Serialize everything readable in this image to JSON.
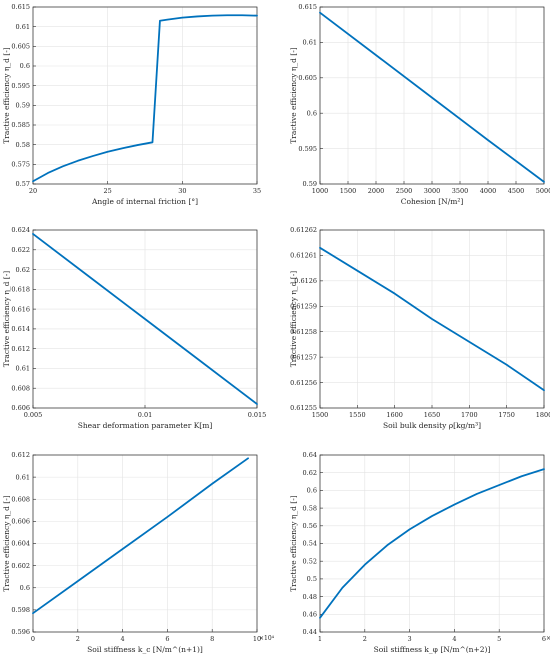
{
  "colors": {
    "line": "#0072bd",
    "axis": "#262626",
    "grid": "#e3e3e3"
  },
  "chart_data": [
    {
      "type": "line",
      "xlabel": "Angle of internal friction [°]",
      "ylabel": "Tractive efficiency η_d [-]",
      "xlim": [
        20,
        35
      ],
      "ylim": [
        0.57,
        0.615
      ],
      "xticks": [
        "20",
        "25",
        "30",
        "35"
      ],
      "yticks": [
        "0.57",
        "0.575",
        "0.58",
        "0.585",
        "0.59",
        "0.595",
        "0.6",
        "0.605",
        "0.61",
        "0.615"
      ],
      "grid": true,
      "series": [
        {
          "x": [
            20,
            21,
            22,
            23,
            24,
            25,
            26,
            27,
            28,
            28.5,
            29,
            30,
            31,
            32,
            33,
            34,
            35
          ],
          "y": [
            0.5707,
            0.5728,
            0.5745,
            0.5759,
            0.5771,
            0.5782,
            0.5791,
            0.5799,
            0.5806,
            0.6115,
            0.6118,
            0.6123,
            0.6126,
            0.6128,
            0.6129,
            0.6129,
            0.6128
          ]
        }
      ]
    },
    {
      "type": "line",
      "xlabel": "Cohesion [N/m²]",
      "ylabel": "Tractive efficiency η_d [-]",
      "xlim": [
        1000,
        5000
      ],
      "ylim": [
        0.59,
        0.615
      ],
      "xticks": [
        "1000",
        "1500",
        "2000",
        "2500",
        "3000",
        "3500",
        "4000",
        "4500",
        "5000"
      ],
      "yticks": [
        "0.59",
        "0.595",
        "0.6",
        "0.605",
        "0.61",
        "0.615"
      ],
      "grid": true,
      "series": [
        {
          "x": [
            1000,
            2000,
            3000,
            4000,
            5000
          ],
          "y": [
            0.6142,
            0.6082,
            0.6022,
            0.5962,
            0.5903
          ]
        }
      ]
    },
    {
      "type": "line",
      "xlabel": "Shear deformation parameter K[m]",
      "ylabel": "Tractive efficiency η_d [-]",
      "xlim": [
        0.005,
        0.015
      ],
      "ylim": [
        0.606,
        0.624
      ],
      "xticks": [
        "0.005",
        "0.01",
        "0.015"
      ],
      "yticks": [
        "0.606",
        "0.608",
        "0.61",
        "0.612",
        "0.614",
        "0.616",
        "0.618",
        "0.62",
        "0.622",
        "0.624"
      ],
      "grid": true,
      "series": [
        {
          "x": [
            0.005,
            0.0075,
            0.01,
            0.0125,
            0.015
          ],
          "y": [
            0.6236,
            0.6193,
            0.615,
            0.6107,
            0.6064
          ]
        }
      ]
    },
    {
      "type": "line",
      "xlabel": "Soil bulk density ρ[kg/m³]",
      "ylabel": "Tractive efficiency η_d [-]",
      "xlim": [
        1500,
        1800
      ],
      "ylim": [
        0.61255,
        0.61262
      ],
      "xticks": [
        "1500",
        "1550",
        "1600",
        "1650",
        "1700",
        "1750",
        "1800"
      ],
      "yticks": [
        "0.61255",
        "0.61256",
        "0.61257",
        "0.61258",
        "0.61259",
        "0.6126",
        "0.61261",
        "0.61262"
      ],
      "grid": true,
      "series": [
        {
          "x": [
            1500,
            1550,
            1600,
            1650,
            1700,
            1750,
            1800
          ],
          "y": [
            0.612613,
            0.612604,
            0.612595,
            0.612585,
            0.612576,
            0.612567,
            0.612557
          ]
        }
      ]
    },
    {
      "type": "line",
      "xlabel": "Soil stiffness k_c [N/m^(n+1)]",
      "ylabel": "Tractive efficiency η_d [-]",
      "xlim": [
        0,
        10
      ],
      "ylim": [
        0.596,
        0.612
      ],
      "xticks": [
        "0",
        "2",
        "4",
        "6",
        "8",
        "10"
      ],
      "yticks": [
        "0.596",
        "0.598",
        "0.6",
        "0.602",
        "0.604",
        "0.606",
        "0.608",
        "0.61",
        "0.612"
      ],
      "x_multiplier": "×10⁴",
      "grid": true,
      "series": [
        {
          "x": [
            0,
            2,
            4,
            6,
            8,
            9.6
          ],
          "y": [
            0.5977,
            0.6006,
            0.6035,
            0.6064,
            0.6094,
            0.6117
          ]
        }
      ]
    },
    {
      "type": "line",
      "xlabel": "Soil stiffness k_φ [N/m^(n+2)]",
      "ylabel": "Tractive efficiency η_d [-]",
      "xlim": [
        1,
        6
      ],
      "ylim": [
        0.44,
        0.64
      ],
      "xticks": [
        "1",
        "2",
        "3",
        "4",
        "5",
        "6"
      ],
      "yticks": [
        "0.44",
        "0.46",
        "0.48",
        "0.5",
        "0.52",
        "0.54",
        "0.56",
        "0.58",
        "0.6",
        "0.62",
        "0.64"
      ],
      "x_multiplier": "×10⁶",
      "grid": true,
      "series": [
        {
          "x": [
            1,
            1.5,
            2,
            2.5,
            3,
            3.5,
            4,
            4.5,
            5,
            5.5,
            6
          ],
          "y": [
            0.456,
            0.49,
            0.516,
            0.538,
            0.556,
            0.571,
            0.584,
            0.596,
            0.606,
            0.616,
            0.624
          ]
        }
      ]
    }
  ]
}
